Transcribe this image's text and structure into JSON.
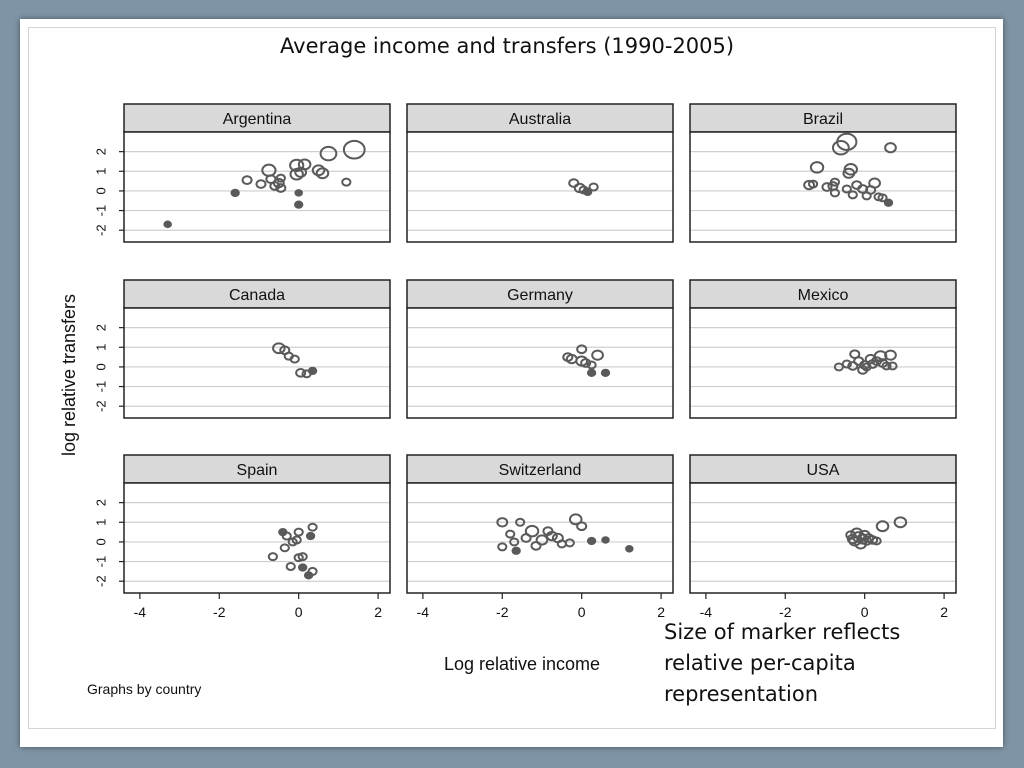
{
  "slide": {
    "title": "Average income and transfers (1990-2005)",
    "note": "Size of marker reflects relative per-capita representation"
  },
  "chart_data": {
    "type": "scatter",
    "subtitle": "",
    "xlabel": "Log relative income",
    "ylabel": "log relative transfers",
    "footer": "Graphs by country",
    "xlim": [
      -4.4,
      2.3
    ],
    "ylim": [
      -2.6,
      3.0
    ],
    "xticks": [
      -4,
      -2,
      0,
      2
    ],
    "yticks": [
      -2,
      -1,
      0,
      1,
      2
    ],
    "grid": true,
    "colors": {
      "marker": "#5a5a5a",
      "header": "#d9d9d9",
      "grid": "#cfcfcf"
    },
    "panels": [
      {
        "name": "Argentina",
        "points": [
          [
            -3.3,
            -1.7,
            0.3
          ],
          [
            -1.6,
            -0.1,
            0.4
          ],
          [
            -1.3,
            0.55,
            0.6
          ],
          [
            -0.95,
            0.35,
            0.6
          ],
          [
            -0.75,
            1.05,
            1.1
          ],
          [
            -0.7,
            0.6,
            0.6
          ],
          [
            -0.6,
            0.25,
            0.6
          ],
          [
            -0.5,
            0.4,
            0.7
          ],
          [
            -0.45,
            0.15,
            0.6
          ],
          [
            -0.45,
            0.65,
            0.5
          ],
          [
            -0.05,
            1.3,
            1.1
          ],
          [
            -0.05,
            0.85,
            1.0
          ],
          [
            0.05,
            0.95,
            0.8
          ],
          [
            0.15,
            1.35,
            0.9
          ],
          [
            0.0,
            -0.1,
            0.3
          ],
          [
            0.0,
            -0.7,
            0.4
          ],
          [
            0.5,
            1.05,
            0.9
          ],
          [
            0.6,
            0.9,
            0.9
          ],
          [
            0.75,
            1.9,
            1.4
          ],
          [
            1.2,
            0.45,
            0.5
          ],
          [
            1.4,
            2.1,
            2.0
          ]
        ]
      },
      {
        "name": "Australia",
        "points": [
          [
            -0.2,
            0.4,
            0.6
          ],
          [
            -0.05,
            0.15,
            0.7
          ],
          [
            0.05,
            0.05,
            0.5
          ],
          [
            0.15,
            -0.05,
            0.4
          ],
          [
            0.3,
            0.2,
            0.5
          ]
        ]
      },
      {
        "name": "Brazil",
        "points": [
          [
            -1.4,
            0.3,
            0.7
          ],
          [
            -1.3,
            0.35,
            0.5
          ],
          [
            -1.2,
            1.2,
            1.0
          ],
          [
            -0.95,
            0.2,
            0.6
          ],
          [
            -0.8,
            0.25,
            0.6
          ],
          [
            -0.75,
            0.45,
            0.5
          ],
          [
            -0.75,
            -0.1,
            0.5
          ],
          [
            -0.6,
            2.2,
            1.4
          ],
          [
            -0.45,
            2.5,
            1.8
          ],
          [
            -0.4,
            0.9,
            0.8
          ],
          [
            -0.35,
            1.1,
            1.0
          ],
          [
            -0.45,
            0.1,
            0.5
          ],
          [
            -0.3,
            -0.2,
            0.5
          ],
          [
            -0.2,
            0.3,
            0.6
          ],
          [
            -0.05,
            0.1,
            0.6
          ],
          [
            0.05,
            -0.25,
            0.5
          ],
          [
            0.15,
            0.05,
            0.6
          ],
          [
            0.25,
            0.4,
            0.8
          ],
          [
            0.35,
            -0.3,
            0.5
          ],
          [
            0.45,
            -0.35,
            0.5
          ],
          [
            0.6,
            -0.6,
            0.4
          ],
          [
            0.65,
            2.2,
            0.8
          ]
        ]
      },
      {
        "name": "Canada",
        "points": [
          [
            -0.5,
            0.95,
            0.9
          ],
          [
            -0.35,
            0.85,
            0.6
          ],
          [
            -0.25,
            0.55,
            0.5
          ],
          [
            -0.1,
            0.4,
            0.5
          ],
          [
            0.05,
            -0.3,
            0.6
          ],
          [
            0.2,
            -0.35,
            0.5
          ],
          [
            0.35,
            -0.2,
            0.4
          ]
        ]
      },
      {
        "name": "Germany",
        "points": [
          [
            -0.35,
            0.5,
            0.6
          ],
          [
            -0.25,
            0.4,
            0.7
          ],
          [
            0.0,
            0.9,
            0.6
          ],
          [
            0.0,
            0.3,
            0.8
          ],
          [
            0.1,
            0.2,
            0.6
          ],
          [
            0.25,
            0.1,
            0.5
          ],
          [
            0.25,
            -0.3,
            0.4
          ],
          [
            0.4,
            0.6,
            0.8
          ],
          [
            0.6,
            -0.3,
            0.4
          ]
        ]
      },
      {
        "name": "Mexico",
        "points": [
          [
            -0.65,
            0.0,
            0.5
          ],
          [
            -0.45,
            0.15,
            0.5
          ],
          [
            -0.3,
            0.05,
            0.6
          ],
          [
            -0.25,
            0.65,
            0.6
          ],
          [
            -0.15,
            0.3,
            0.6
          ],
          [
            -0.05,
            -0.15,
            0.6
          ],
          [
            0.0,
            0.1,
            0.6
          ],
          [
            0.05,
            0.0,
            0.5
          ],
          [
            0.15,
            0.4,
            0.7
          ],
          [
            0.2,
            0.15,
            0.6
          ],
          [
            0.3,
            0.3,
            0.6
          ],
          [
            0.4,
            0.55,
            0.9
          ],
          [
            0.45,
            0.2,
            0.6
          ],
          [
            0.55,
            0.05,
            0.5
          ],
          [
            0.65,
            0.6,
            0.8
          ],
          [
            0.7,
            0.05,
            0.5
          ]
        ]
      },
      {
        "name": "Spain",
        "points": [
          [
            -0.4,
            0.5,
            0.4
          ],
          [
            -0.3,
            0.3,
            0.5
          ],
          [
            -0.35,
            -0.3,
            0.5
          ],
          [
            -0.15,
            0.0,
            0.5
          ],
          [
            -0.05,
            0.1,
            0.5
          ],
          [
            0.0,
            0.5,
            0.5
          ],
          [
            0.0,
            -0.8,
            0.5
          ],
          [
            0.1,
            -0.75,
            0.5
          ],
          [
            -0.65,
            -0.75,
            0.5
          ],
          [
            -0.2,
            -1.25,
            0.5
          ],
          [
            0.35,
            0.75,
            0.5
          ],
          [
            0.3,
            0.3,
            0.4
          ],
          [
            0.25,
            -1.7,
            0.4
          ],
          [
            0.35,
            -1.5,
            0.5
          ],
          [
            0.1,
            -1.3,
            0.4
          ]
        ]
      },
      {
        "name": "Switzerland",
        "points": [
          [
            -2.0,
            1.0,
            0.7
          ],
          [
            -2.0,
            -0.25,
            0.5
          ],
          [
            -1.8,
            0.4,
            0.5
          ],
          [
            -1.7,
            0.0,
            0.5
          ],
          [
            -1.65,
            -0.45,
            0.4
          ],
          [
            -1.55,
            1.0,
            0.5
          ],
          [
            -1.4,
            0.2,
            0.6
          ],
          [
            -1.25,
            0.55,
            1.0
          ],
          [
            -1.15,
            -0.2,
            0.6
          ],
          [
            -1.0,
            0.1,
            0.8
          ],
          [
            -0.85,
            0.55,
            0.6
          ],
          [
            -0.75,
            0.3,
            0.7
          ],
          [
            -0.6,
            0.2,
            0.7
          ],
          [
            -0.5,
            -0.1,
            0.5
          ],
          [
            -0.3,
            -0.05,
            0.5
          ],
          [
            -0.15,
            1.15,
            0.9
          ],
          [
            0.0,
            0.8,
            0.6
          ],
          [
            0.25,
            0.05,
            0.4
          ],
          [
            0.6,
            0.1,
            0.3
          ],
          [
            1.2,
            -0.35,
            0.3
          ]
        ]
      },
      {
        "name": "USA",
        "points": [
          [
            -0.35,
            0.35,
            0.6
          ],
          [
            -0.3,
            0.15,
            0.7
          ],
          [
            -0.25,
            0.05,
            0.8
          ],
          [
            -0.2,
            0.45,
            0.8
          ],
          [
            -0.15,
            0.25,
            0.9
          ],
          [
            -0.1,
            -0.1,
            0.8
          ],
          [
            -0.05,
            0.15,
            0.8
          ],
          [
            0.0,
            0.35,
            0.7
          ],
          [
            0.05,
            0.05,
            0.6
          ],
          [
            0.1,
            0.2,
            0.6
          ],
          [
            0.2,
            0.1,
            0.6
          ],
          [
            0.3,
            0.05,
            0.5
          ],
          [
            0.45,
            0.8,
            0.9
          ],
          [
            0.9,
            1.0,
            0.9
          ]
        ]
      }
    ]
  }
}
